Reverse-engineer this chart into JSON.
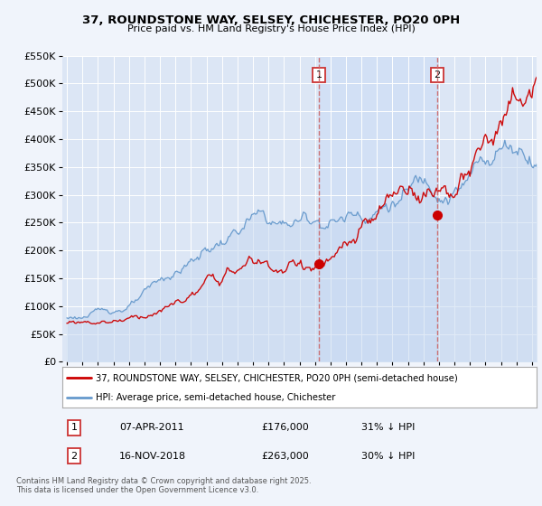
{
  "title_line1": "37, ROUNDSTONE WAY, SELSEY, CHICHESTER, PO20 0PH",
  "title_line2": "Price paid vs. HM Land Registry's House Price Index (HPI)",
  "legend_label_red": "37, ROUNDSTONE WAY, SELSEY, CHICHESTER, PO20 0PH (semi-detached house)",
  "legend_label_blue": "HPI: Average price, semi-detached house, Chichester",
  "purchase1_date": "07-APR-2011",
  "purchase1_price": 176000,
  "purchase1_hpi": "31% ↓ HPI",
  "purchase2_date": "16-NOV-2018",
  "purchase2_price": 263000,
  "purchase2_hpi": "30% ↓ HPI",
  "footer": "Contains HM Land Registry data © Crown copyright and database right 2025.\nThis data is licensed under the Open Government Licence v3.0.",
  "bg_color": "#f0f4fb",
  "plot_bg_color": "#dce6f5",
  "red_color": "#cc0000",
  "blue_color": "#6699cc",
  "blue_fill_color": "#c5d8f0",
  "vline_color": "#cc6666",
  "grid_color": "#ffffff",
  "highlight_fill": "#ccddf5",
  "ylim": [
    0,
    550000
  ],
  "yticks": [
    0,
    50000,
    100000,
    150000,
    200000,
    250000,
    300000,
    350000,
    400000,
    450000,
    500000,
    550000
  ],
  "purchase1_year": 2011.27,
  "purchase2_year": 2018.88
}
